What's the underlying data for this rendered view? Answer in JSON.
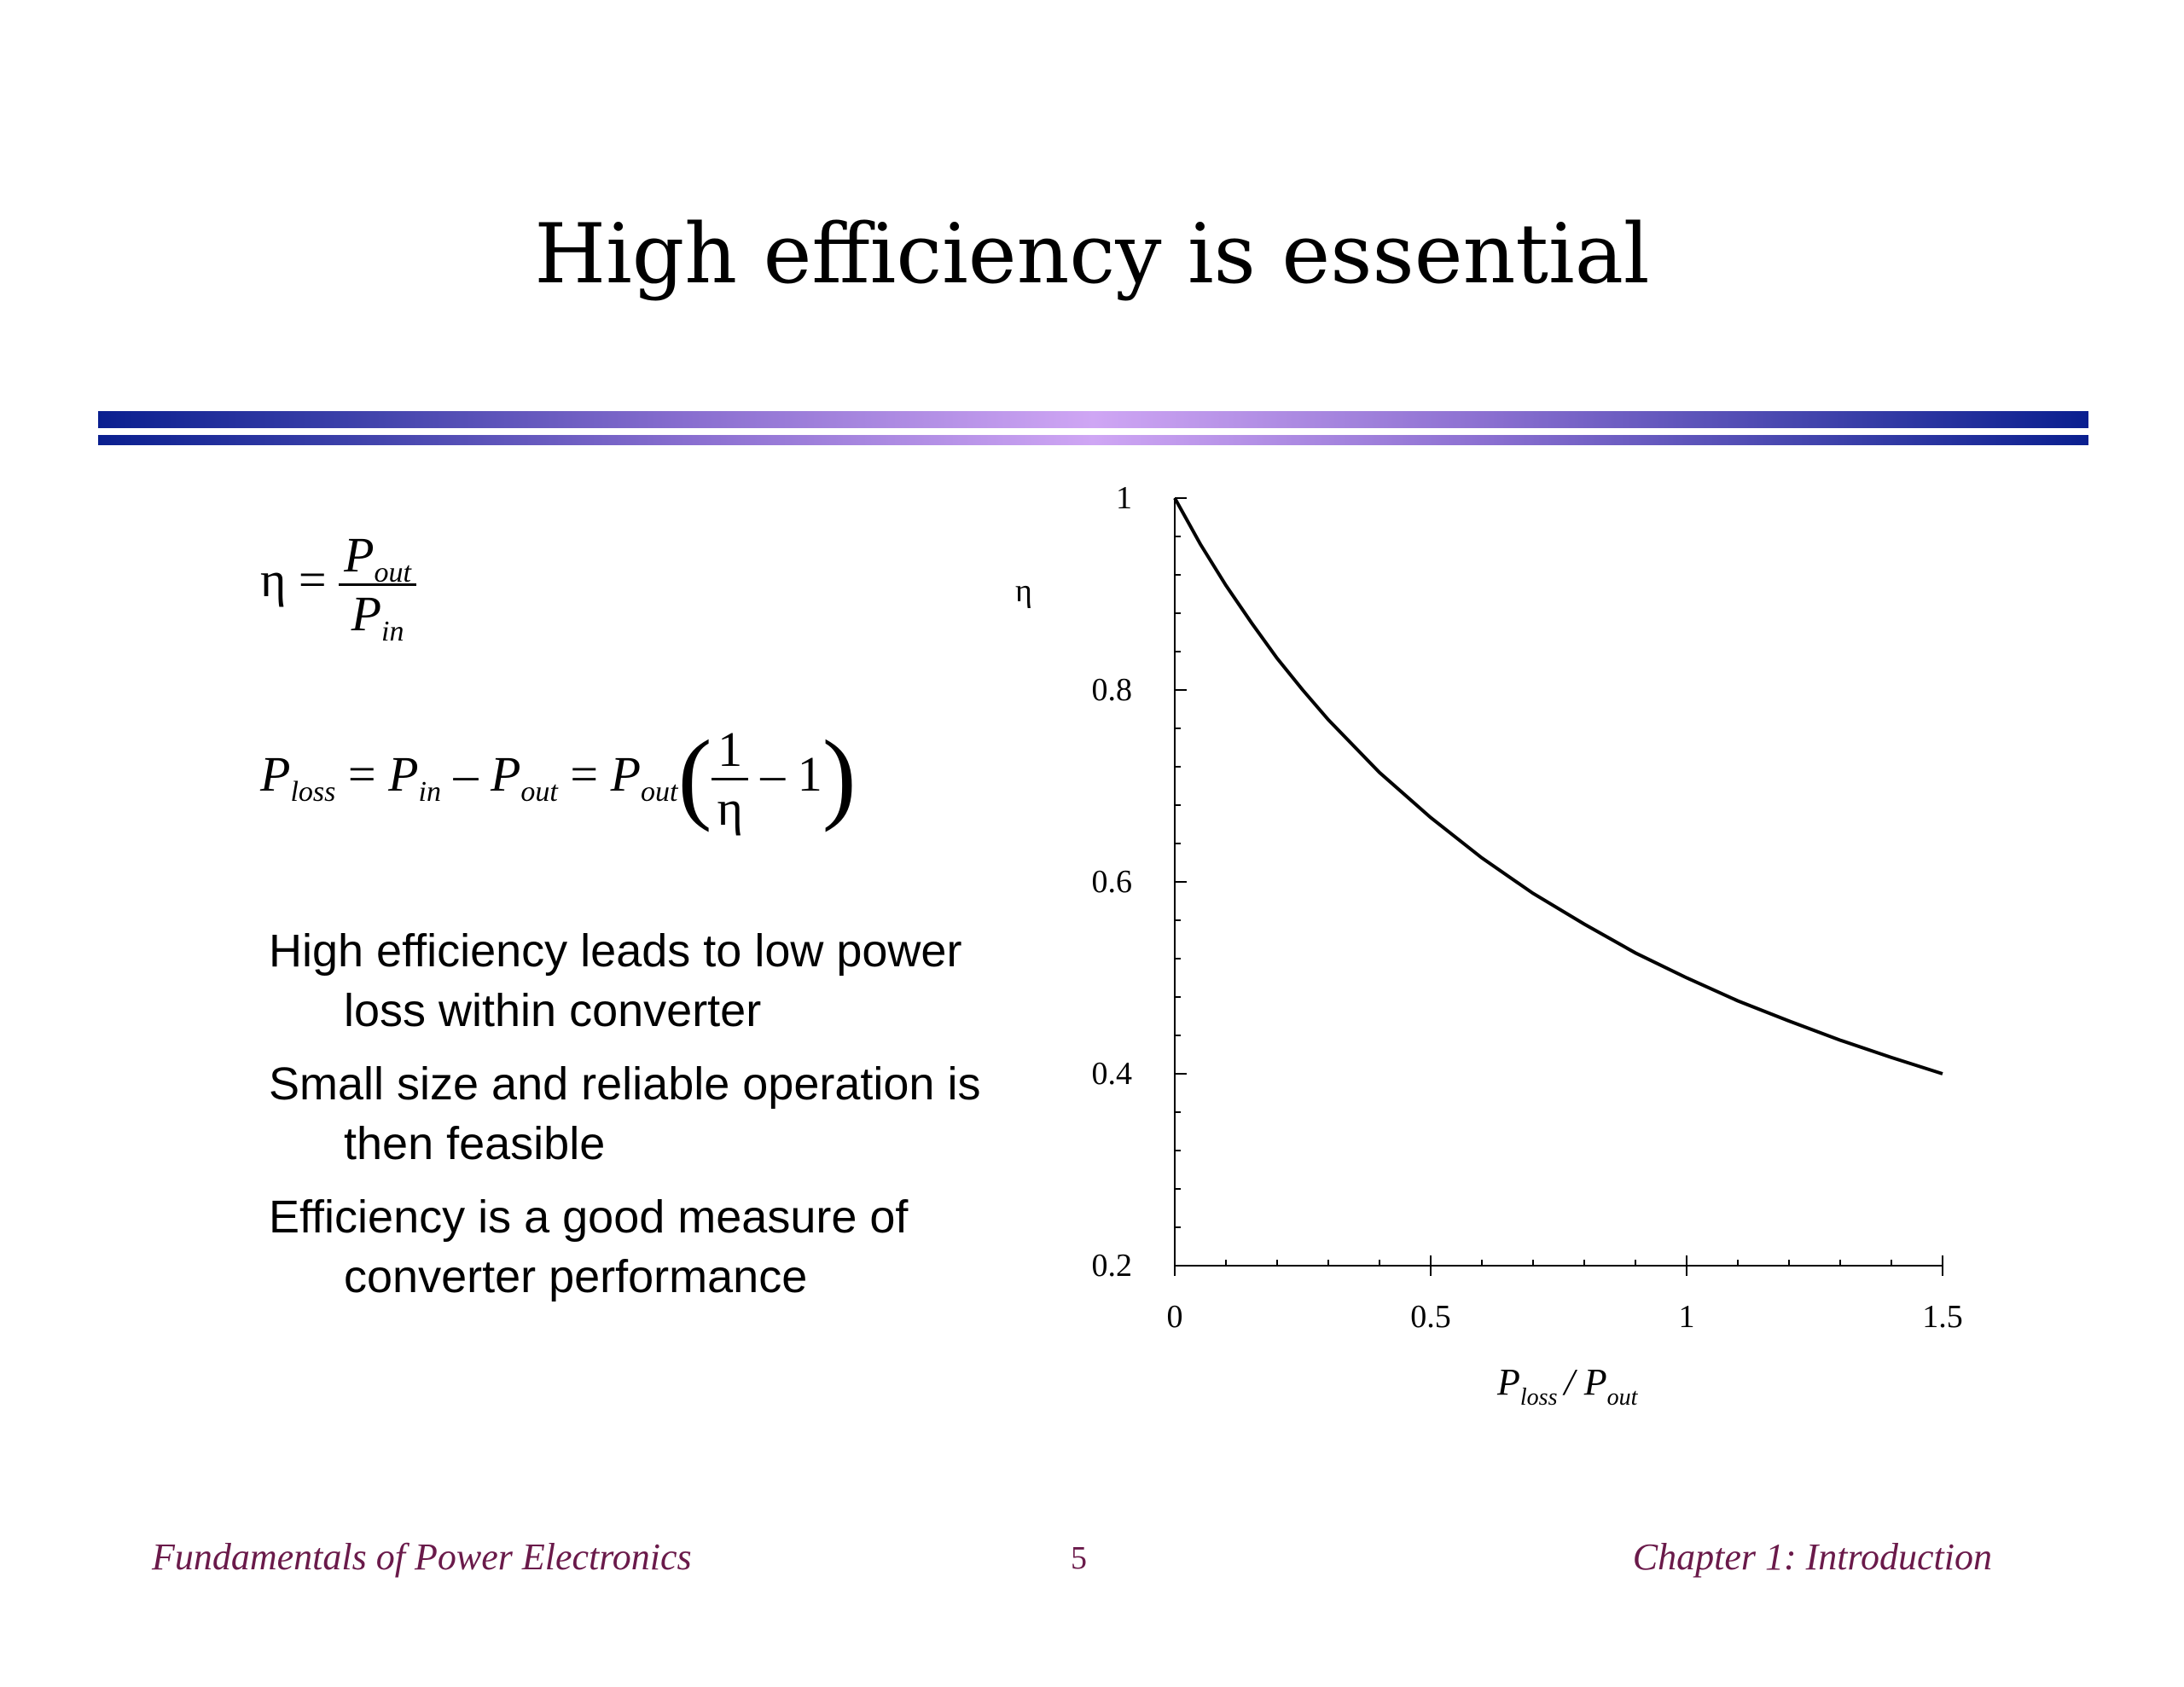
{
  "slide": {
    "title": "High efficiency is essential",
    "footer_left": "Fundamentals of Power Electronics",
    "page_number": "5",
    "footer_right": "Chapter 1: Introduction"
  },
  "equations": {
    "eta": "η",
    "equals": "=",
    "P": "P",
    "out": "out",
    "in": "in",
    "loss": "loss",
    "minus": "–",
    "one": "1",
    "open_paren": "(",
    "close_paren": ")",
    "one_minus": "– 1"
  },
  "bullets": [
    "High efficiency leads to low power loss within converter",
    "Small size and reliable operation is then feasible",
    "Efficiency is a good measure of converter performance"
  ],
  "chart_data": {
    "type": "line",
    "title": "",
    "xlabel_main": "P",
    "xlabel_sub1": "loss",
    "xlabel_slash": "/ P",
    "xlabel_sub2": "out",
    "ylabel": "η",
    "xlim": [
      0,
      1.5
    ],
    "ylim": [
      0.2,
      1
    ],
    "x_ticks": [
      "0",
      "0.5",
      "1",
      "1.5"
    ],
    "y_ticks": [
      "0.2",
      "0.4",
      "0.6",
      "0.8",
      "1"
    ],
    "grid": false,
    "series": [
      {
        "x": [
          0,
          0.05,
          0.1,
          0.15,
          0.2,
          0.25,
          0.3,
          0.4,
          0.5,
          0.6,
          0.7,
          0.8,
          0.9,
          1.0,
          1.1,
          1.2,
          1.3,
          1.4,
          1.5
        ],
        "values": [
          1.0,
          0.952,
          0.909,
          0.87,
          0.833,
          0.8,
          0.769,
          0.714,
          0.667,
          0.625,
          0.588,
          0.556,
          0.526,
          0.5,
          0.476,
          0.455,
          0.435,
          0.417,
          0.4
        ]
      }
    ],
    "line_color": "#000000"
  }
}
